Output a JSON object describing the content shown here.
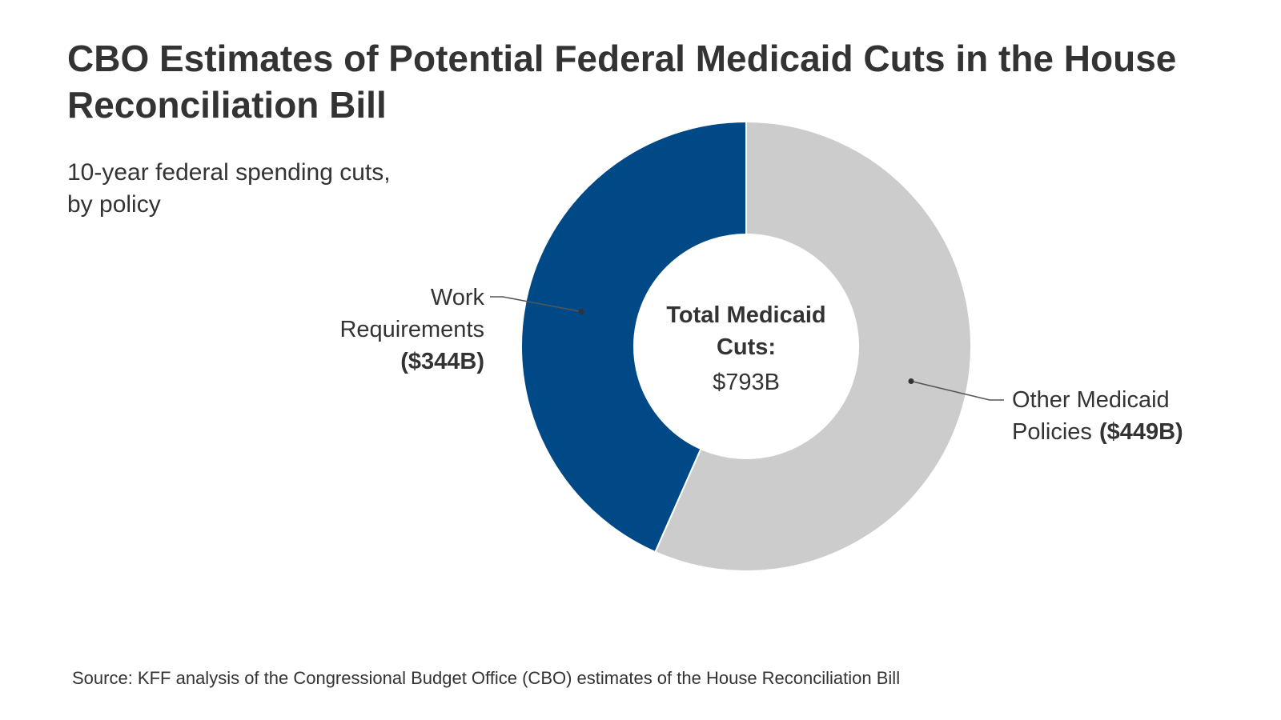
{
  "header": {
    "title_line1": "CBO Estimates of Potential Federal Medicaid Cuts in the House",
    "title_line2": "Reconciliation Bill",
    "subtitle_line1": "10-year federal spending cuts,",
    "subtitle_line2": "by policy"
  },
  "footer": {
    "source": "Source:  KFF analysis of the Congressional Budget Office (CBO) estimates of the House Reconciliation Bill"
  },
  "chart_data": {
    "type": "pie",
    "subtype": "donut",
    "title": "CBO Estimates of Potential Federal Medicaid Cuts in the House Reconciliation Bill",
    "subtitle": "10-year federal spending cuts, by policy",
    "units": "billions of dollars",
    "center_label": {
      "title_line1": "Total Medicaid",
      "title_line2": "Cuts:",
      "value_text": "$793B",
      "value": 793
    },
    "slices": [
      {
        "name": "Work Requirements",
        "value": 344,
        "color": "#004987",
        "label_lines": [
          "Work",
          "Requirements"
        ],
        "value_label": "($344B)",
        "label_side": "left"
      },
      {
        "name": "Other Medicaid Policies",
        "value": 449,
        "color": "#cccccc",
        "label_lines": [
          "Other Medicaid",
          "Policies"
        ],
        "value_label": "($449B)",
        "label_side": "right"
      }
    ]
  }
}
